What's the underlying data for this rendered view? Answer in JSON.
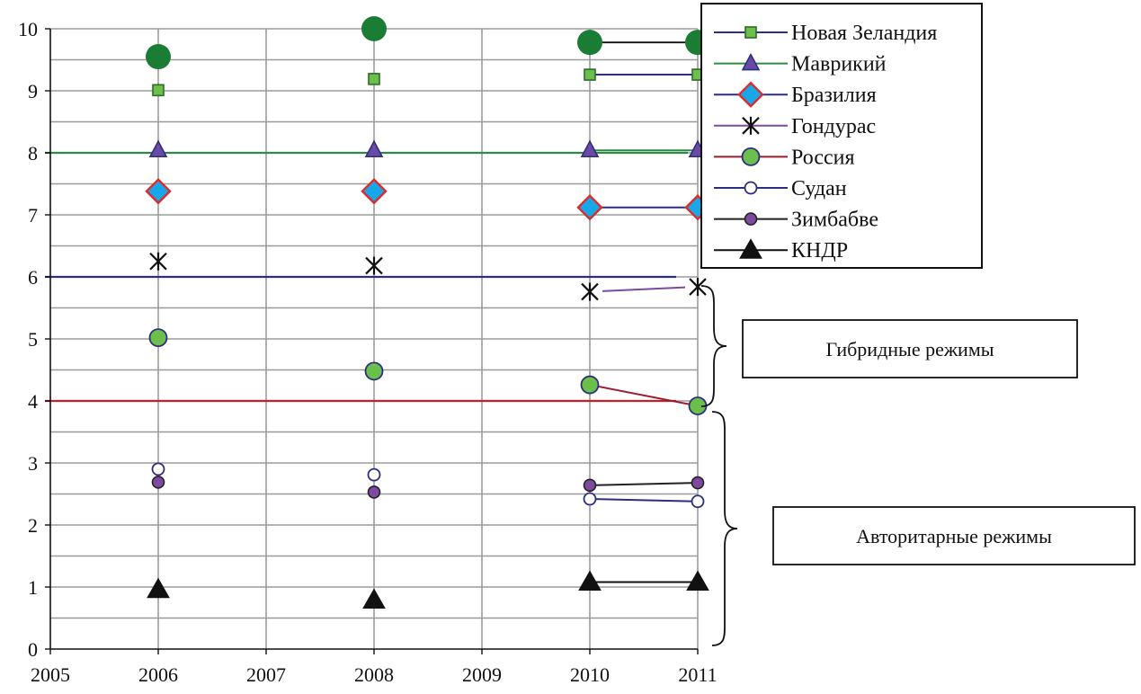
{
  "chart_data": {
    "type": "line",
    "title": "",
    "xlabel": "",
    "ylabel": "",
    "xlim": [
      2005,
      2011
    ],
    "ylim": [
      0,
      10
    ],
    "x_ticks": [
      "2005",
      "2006",
      "2007",
      "2008",
      "2009",
      "2010",
      "2011"
    ],
    "y_ticks": [
      "0",
      "1",
      "2",
      "3",
      "4",
      "5",
      "6",
      "7",
      "8",
      "9",
      "10"
    ],
    "grid": true,
    "legend_position": "top-right",
    "series": [
      {
        "name": "Новая Зеландия",
        "color": "#2b2f7f",
        "marker": "square",
        "marker_fill": "#6cbf4a",
        "points": [
          {
            "x": 2006,
            "y": 9.01
          },
          {
            "x": 2008,
            "y": 9.19
          },
          {
            "x": 2010,
            "y": 9.26
          },
          {
            "x": 2011,
            "y": 9.26
          }
        ]
      },
      {
        "name": "Маврикий",
        "color": "#2f8a4a",
        "marker": "triangle",
        "marker_fill": "#6b4aa6",
        "points": [
          {
            "x": 2006,
            "y": 8.04
          },
          {
            "x": 2008,
            "y": 8.04
          },
          {
            "x": 2010,
            "y": 8.04
          },
          {
            "x": 2011,
            "y": 8.04
          }
        ]
      },
      {
        "name": "Бразилия",
        "color": "#2b2f7f",
        "marker": "diamond",
        "marker_fill": "#1aa7e8",
        "marker_stroke": "#e02a2a",
        "points": [
          {
            "x": 2006,
            "y": 7.38
          },
          {
            "x": 2008,
            "y": 7.38
          },
          {
            "x": 2010,
            "y": 7.12
          },
          {
            "x": 2011,
            "y": 7.12
          }
        ]
      },
      {
        "name": "Гондурас",
        "color": "#7e4aa0",
        "marker": "star",
        "marker_fill": "#111111",
        "points": [
          {
            "x": 2006,
            "y": 6.25
          },
          {
            "x": 2008,
            "y": 6.18
          },
          {
            "x": 2010,
            "y": 5.76
          },
          {
            "x": 2011,
            "y": 5.84
          }
        ]
      },
      {
        "name": "Россия",
        "color": "#9a1c2c",
        "marker": "circle",
        "marker_fill": "#6cbf4a",
        "points": [
          {
            "x": 2006,
            "y": 5.02
          },
          {
            "x": 2008,
            "y": 4.48
          },
          {
            "x": 2010,
            "y": 4.26
          },
          {
            "x": 2011,
            "y": 3.92
          }
        ]
      },
      {
        "name": "Судан",
        "color": "#2b2f7f",
        "marker": "circle-open",
        "marker_fill": "#ffffff",
        "points": [
          {
            "x": 2006,
            "y": 2.9
          },
          {
            "x": 2008,
            "y": 2.81
          },
          {
            "x": 2010,
            "y": 2.42
          },
          {
            "x": 2011,
            "y": 2.38
          }
        ]
      },
      {
        "name": "Зимбабве",
        "color": "#222222",
        "marker": "circle-small",
        "marker_fill": "#7e4aa0",
        "points": [
          {
            "x": 2006,
            "y": 2.69
          },
          {
            "x": 2008,
            "y": 2.53
          },
          {
            "x": 2010,
            "y": 2.64
          },
          {
            "x": 2011,
            "y": 2.68
          }
        ]
      },
      {
        "name": "КНДР",
        "color": "#111111",
        "marker": "triangle-black",
        "marker_fill": "#111111",
        "points": [
          {
            "x": 2006,
            "y": 0.96
          },
          {
            "x": 2008,
            "y": 0.79
          },
          {
            "x": 2010,
            "y": 1.08
          },
          {
            "x": 2011,
            "y": 1.08
          }
        ]
      }
    ],
    "extra_markers": [
      {
        "marker": "circle-big",
        "color": "#1b7d33",
        "points": [
          {
            "x": 2006,
            "y": 9.55
          },
          {
            "x": 2008,
            "y": 10.0
          },
          {
            "x": 2010,
            "y": 9.78
          },
          {
            "x": 2011,
            "y": 9.78
          }
        ]
      }
    ],
    "reference_lines": [
      {
        "y": 8,
        "color": "#2f8a4a"
      },
      {
        "y": 6,
        "color": "#2b2f7f"
      },
      {
        "y": 4,
        "color": "#c8202a"
      }
    ],
    "annotations": [
      {
        "text": "Гибридные режимы",
        "y_range": [
          4,
          6
        ]
      },
      {
        "text": "Авторитарные режимы",
        "y_range": [
          0,
          4
        ]
      }
    ]
  }
}
